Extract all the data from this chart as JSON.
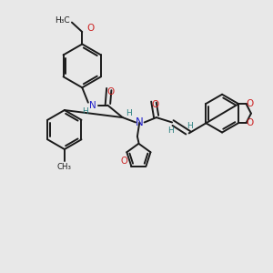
{
  "background_color": "#e8e8e8",
  "bond_color": "#1a1a1a",
  "N_color": "#2222cc",
  "O_color": "#cc2222",
  "H_color": "#2a8080",
  "figsize": [
    3.0,
    3.0
  ],
  "dpi": 100,
  "xlim": [
    0,
    10
  ],
  "ylim": [
    0,
    10
  ]
}
